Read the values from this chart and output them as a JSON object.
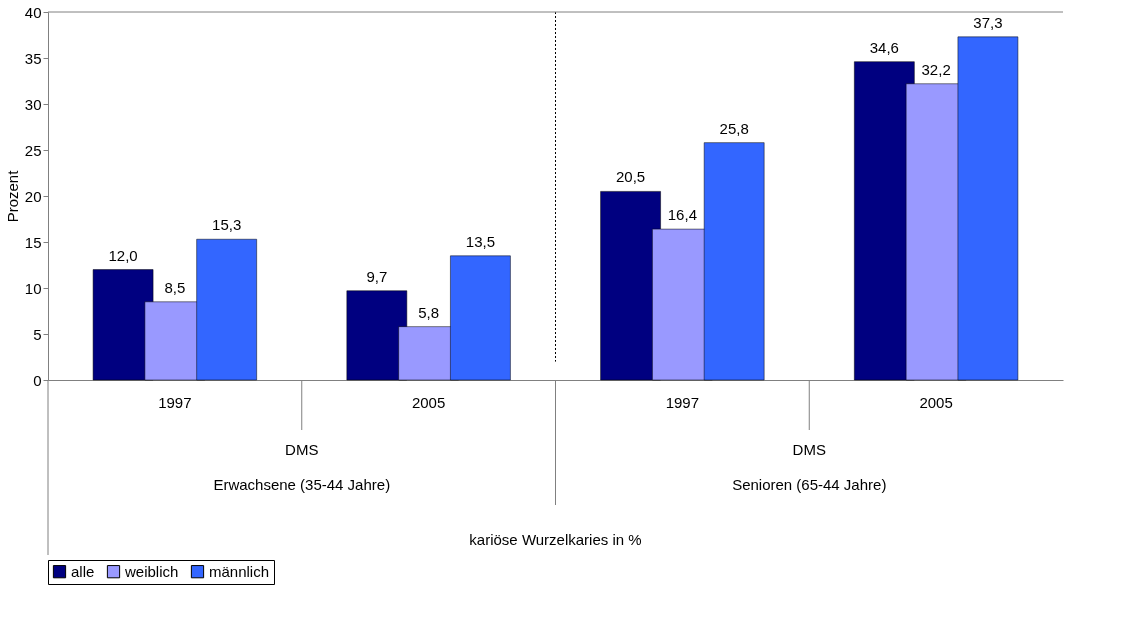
{
  "chart_data": {
    "type": "bar",
    "categories": [
      "1997",
      "2005",
      "1997",
      "2005"
    ],
    "series": [
      {
        "name": "alle",
        "color": "#000080",
        "values": [
          12.0,
          9.7,
          20.5,
          34.6
        ],
        "value_labels": [
          "12,0",
          "9,7",
          "20,5",
          "34,6"
        ]
      },
      {
        "name": "weiblich",
        "color": "#9999ff",
        "values": [
          8.5,
          5.8,
          16.4,
          32.2
        ],
        "value_labels": [
          "8,5",
          "5,8",
          "16,4",
          "32,2"
        ]
      },
      {
        "name": "männlich",
        "color": "#3366ff",
        "values": [
          15.3,
          13.5,
          25.8,
          37.3
        ],
        "value_labels": [
          "15,3",
          "13,5",
          "25,8",
          "37,3"
        ]
      }
    ],
    "ylabel": "Prozent",
    "ylim": [
      0,
      40
    ],
    "yticks": [
      0,
      5,
      10,
      15,
      20,
      25,
      30,
      35,
      40
    ],
    "annotations": [
      "DMS",
      "DMS",
      "Erwachsene (35-44 Jahre)",
      "Senioren (65-44 Jahre)",
      "kariöse Wurzelkaries in %"
    ],
    "grid": false,
    "legend": "bottom"
  }
}
